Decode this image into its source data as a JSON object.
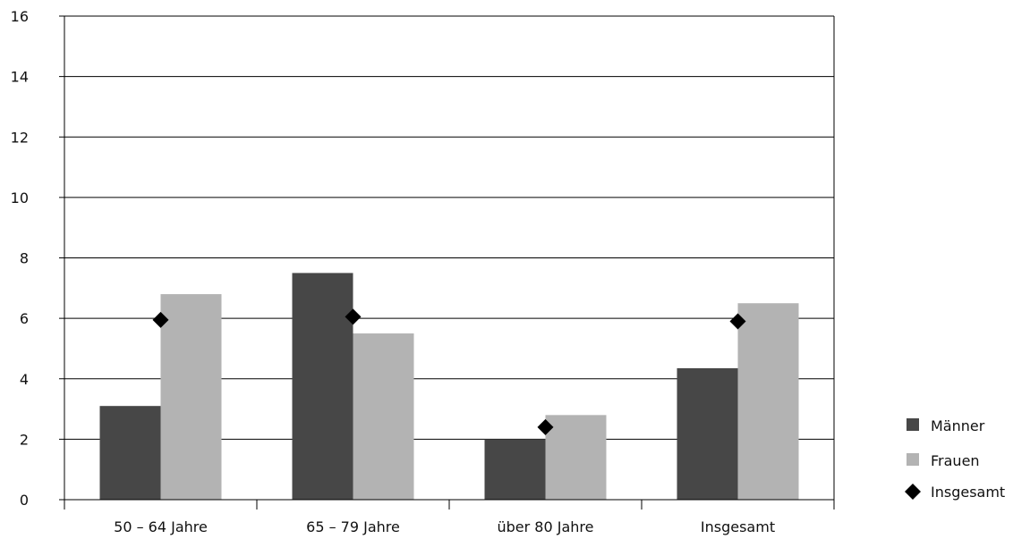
{
  "chart_data": {
    "type": "bar",
    "title": "",
    "xlabel": "",
    "ylabel": "",
    "categories": [
      "50 – 64 Jahre",
      "65 – 79 Jahre",
      "über 80 Jahre",
      "Insgesamt"
    ],
    "series": [
      {
        "name": "Männer",
        "type": "bar",
        "color": "#474747",
        "values": [
          3.1,
          7.5,
          2.0,
          4.35
        ]
      },
      {
        "name": "Frauen",
        "type": "bar",
        "color": "#b3b3b3",
        "values": [
          6.8,
          5.5,
          2.8,
          6.5
        ]
      },
      {
        "name": "Insgesamt",
        "type": "marker",
        "marker": "diamond",
        "color": "#000000",
        "values": [
          5.95,
          6.05,
          2.4,
          5.9
        ]
      }
    ],
    "ylim": [
      0,
      16
    ],
    "yticks": [
      0,
      2,
      4,
      6,
      8,
      10,
      12,
      14,
      16
    ],
    "grid": true,
    "legend": "right"
  }
}
